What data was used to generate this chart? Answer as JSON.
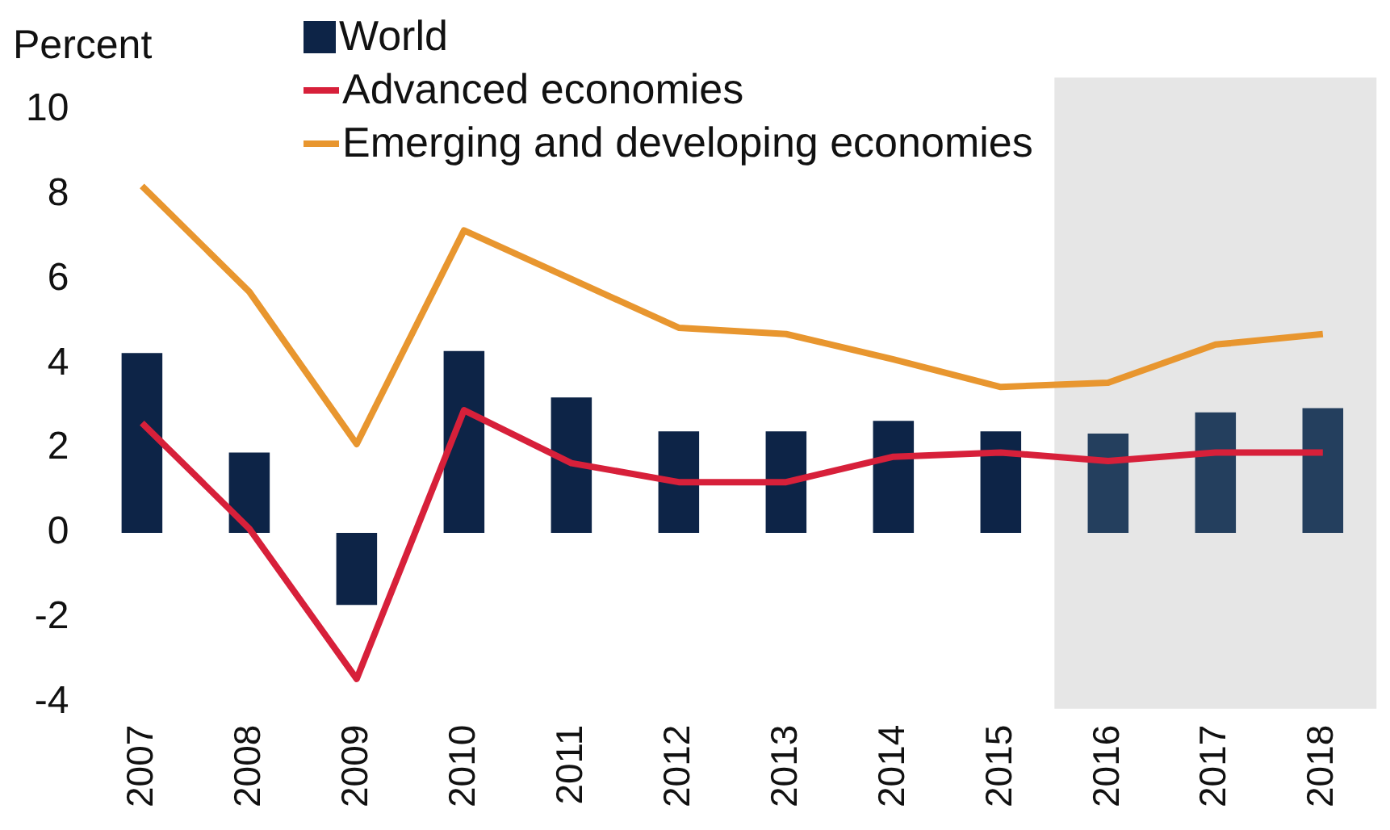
{
  "chart_data": {
    "type": "bar",
    "ylabel": "Percent",
    "categories": [
      "2007",
      "2008",
      "2009",
      "2010",
      "2011",
      "2012",
      "2013",
      "2014",
      "2015",
      "2016",
      "2017",
      "2018"
    ],
    "series": [
      {
        "name": "World",
        "colors": [
          "#0d2447",
          "#0d2447",
          "#0d2447",
          "#0d2447",
          "#0d2447",
          "#0d2447",
          "#0d2447",
          "#0d2447",
          "#0d2447",
          "#243f5e",
          "#243f5e",
          "#243f5e"
        ],
        "values": [
          4.25,
          1.9,
          -1.7,
          4.3,
          3.2,
          2.4,
          2.4,
          2.65,
          2.4,
          2.35,
          2.85,
          2.95
        ]
      },
      {
        "name": "Advanced economies",
        "type": "line",
        "color": "#d7203a",
        "values": [
          2.6,
          0.1,
          -3.45,
          2.9,
          1.65,
          1.2,
          1.2,
          1.8,
          1.9,
          1.7,
          1.9,
          1.9
        ]
      },
      {
        "name": "Emerging and developing economies",
        "type": "line",
        "color": "#e8962f",
        "values": [
          8.2,
          5.7,
          2.1,
          7.15,
          6.0,
          4.85,
          4.7,
          4.1,
          3.45,
          3.55,
          4.45,
          4.7
        ]
      }
    ],
    "ylim": [
      -4,
      10
    ],
    "yticks": [
      -4,
      -2,
      0,
      2,
      4,
      6,
      8,
      10
    ],
    "bands": [
      {
        "axis": "x",
        "from": "2016",
        "to": "2018",
        "color": "#e6e6e6"
      }
    ],
    "grid": false,
    "legend": "top",
    "marker": "none",
    "line_style": "solid"
  }
}
